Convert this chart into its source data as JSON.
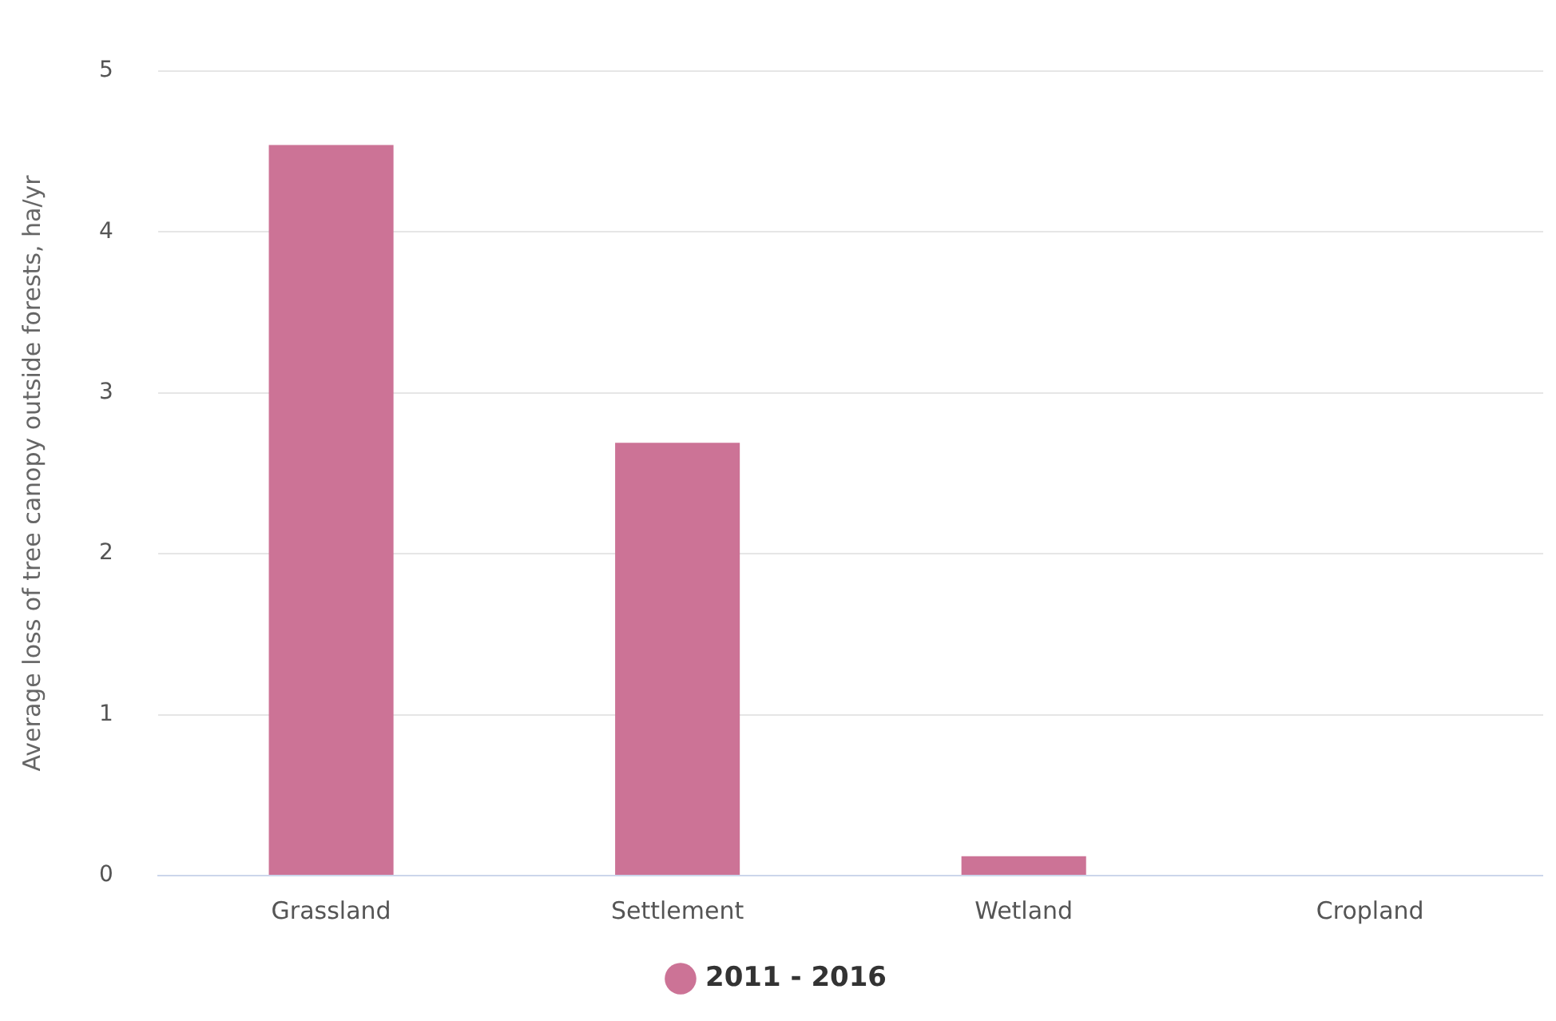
{
  "chart_data": {
    "type": "bar",
    "ylabel": "Average loss of tree canopy outside forests, ha/yr",
    "categories": [
      "Grassland",
      "Settlement",
      "Wetland",
      "Cropland"
    ],
    "series": [
      {
        "name": "2011 - 2016",
        "color": "#cc7396",
        "values": [
          4.54,
          2.69,
          0.12,
          0
        ]
      }
    ],
    "ylim": [
      0,
      5
    ],
    "yticks": [
      0,
      1,
      2,
      3,
      4,
      5
    ],
    "grid": "y",
    "legend": "bottom"
  }
}
